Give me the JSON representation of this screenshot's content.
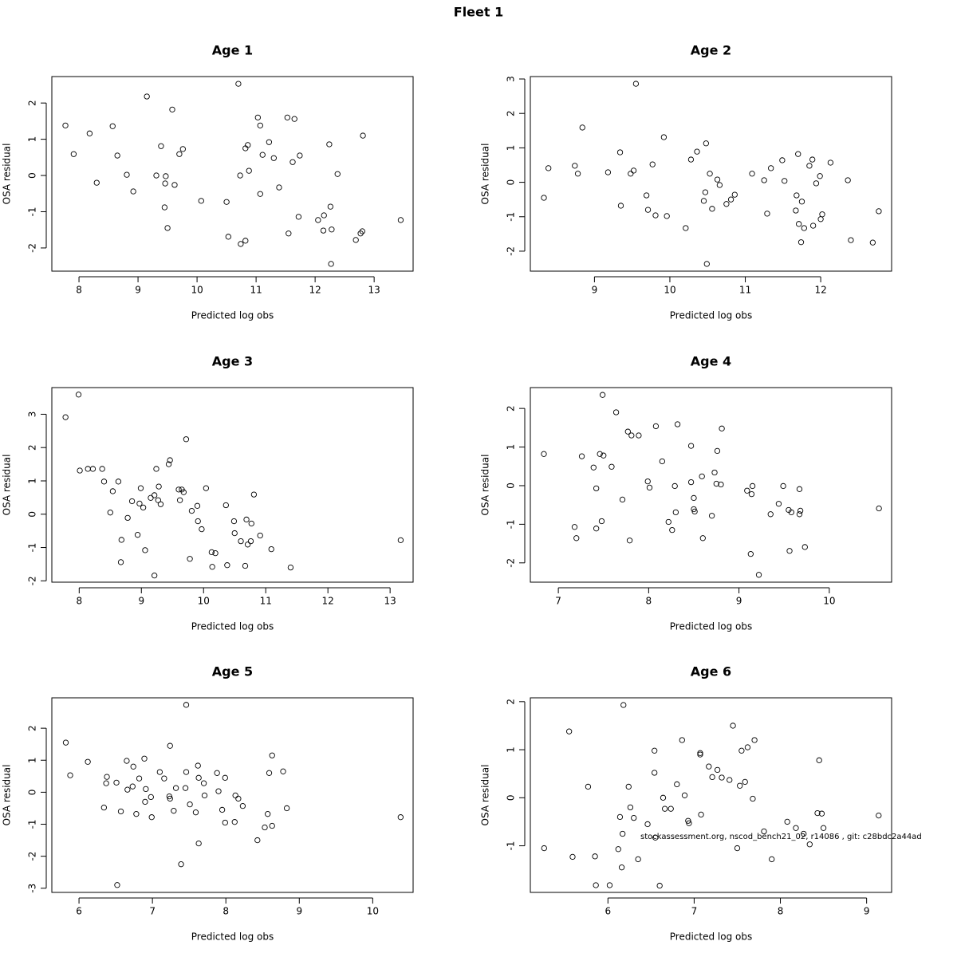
{
  "title": "Fleet 1",
  "annotation": "stockassessment.org, nscod_bench21_02, r14086 , git: c28bdc2a44ad",
  "chart_data": [
    {
      "type": "scatter",
      "title": "Age 1",
      "xlabel": "Predicted log obs",
      "ylabel": "OSA residual",
      "x": [
        7.77,
        7.91,
        8.18,
        8.3,
        8.57,
        8.65,
        8.81,
        8.92,
        9.15,
        9.31,
        9.39,
        9.47,
        9.46,
        9.45,
        9.5,
        9.58,
        9.62,
        9.7,
        9.76,
        10.07,
        10.5,
        10.53,
        10.7,
        10.73,
        10.74,
        10.82,
        10.82,
        10.86,
        10.88,
        11.03,
        11.07,
        11.07,
        11.11,
        11.22,
        11.3,
        11.39,
        11.53,
        11.55,
        11.62,
        11.65,
        11.72,
        11.74,
        12.05,
        12.14,
        12.15,
        12.24,
        12.26,
        12.28,
        12.27,
        12.38,
        12.69,
        12.77,
        12.8,
        12.81,
        13.45
      ],
      "values": [
        1.38,
        0.59,
        1.16,
        -0.2,
        1.36,
        0.55,
        0.02,
        -0.44,
        2.18,
        0.0,
        0.81,
        -0.02,
        -0.22,
        -0.88,
        -1.45,
        1.82,
        -0.26,
        0.59,
        0.73,
        -0.7,
        -0.73,
        -1.69,
        2.53,
        0.0,
        -1.89,
        -1.8,
        0.75,
        0.84,
        0.13,
        1.6,
        -0.51,
        1.38,
        0.57,
        0.92,
        0.48,
        -0.33,
        1.6,
        -1.6,
        0.37,
        1.56,
        -1.14,
        0.55,
        -1.23,
        -1.52,
        -1.1,
        0.86,
        -0.86,
        -1.49,
        -2.44,
        0.04,
        -1.78,
        -1.6,
        -1.54,
        1.1,
        -1.23
      ],
      "xlim": [
        7.54,
        13.66
      ],
      "ylim": [
        -2.64,
        2.73
      ],
      "xticks": [
        8,
        9,
        10,
        11,
        12,
        13
      ],
      "yticks": [
        -2,
        -1,
        0,
        1,
        2
      ]
    },
    {
      "type": "scatter",
      "title": "Age 2",
      "xlabel": "Predicted log obs",
      "ylabel": "OSA residual",
      "x": [
        8.33,
        8.39,
        8.74,
        8.78,
        8.84,
        9.18,
        9.34,
        9.35,
        9.48,
        9.52,
        9.55,
        9.69,
        9.71,
        9.77,
        9.81,
        9.92,
        9.96,
        10.21,
        10.28,
        10.36,
        10.45,
        10.47,
        10.48,
        10.49,
        10.53,
        10.56,
        10.63,
        10.66,
        10.75,
        10.81,
        10.86,
        11.09,
        11.25,
        11.29,
        11.34,
        11.49,
        11.52,
        11.67,
        11.68,
        11.7,
        11.71,
        11.75,
        11.74,
        11.78,
        11.85,
        11.89,
        11.9,
        11.94,
        11.99,
        12.0,
        12.02,
        12.13,
        12.36,
        12.4,
        12.69,
        12.77
      ],
      "values": [
        -0.45,
        0.41,
        0.48,
        0.25,
        1.59,
        0.29,
        0.87,
        -0.68,
        0.25,
        0.34,
        2.86,
        -0.38,
        -0.8,
        0.52,
        -0.96,
        1.31,
        -0.98,
        -1.33,
        0.66,
        0.89,
        -0.54,
        -0.29,
        1.13,
        -2.37,
        0.25,
        -0.77,
        0.08,
        -0.08,
        -0.63,
        -0.5,
        -0.36,
        0.25,
        0.06,
        -0.91,
        0.41,
        0.64,
        0.04,
        -0.82,
        -0.38,
        0.82,
        -1.21,
        -0.56,
        -1.74,
        -1.33,
        0.48,
        0.66,
        -1.26,
        -0.03,
        0.18,
        -1.07,
        -0.93,
        0.57,
        0.06,
        -1.68,
        -1.75,
        -0.84
      ],
      "xlim": [
        8.15,
        12.94
      ],
      "ylim": [
        -2.58,
        3.07
      ],
      "xticks": [
        9,
        10,
        11,
        12
      ],
      "yticks": [
        -2,
        -1,
        0,
        1,
        2,
        3
      ]
    },
    {
      "type": "scatter",
      "title": "Age 3",
      "xlabel": "Predicted log obs",
      "ylabel": "OSA residual",
      "x": [
        7.78,
        7.99,
        8.01,
        8.14,
        8.22,
        8.37,
        8.4,
        8.5,
        8.54,
        8.63,
        8.68,
        8.67,
        8.78,
        8.85,
        8.94,
        8.99,
        8.97,
        9.03,
        9.06,
        9.15,
        9.21,
        9.21,
        9.24,
        9.28,
        9.27,
        9.31,
        9.44,
        9.46,
        9.6,
        9.62,
        9.65,
        9.68,
        9.72,
        9.78,
        9.81,
        9.9,
        9.91,
        9.97,
        10.04,
        10.13,
        10.14,
        10.19,
        10.36,
        10.38,
        10.49,
        10.5,
        10.6,
        10.67,
        10.69,
        10.71,
        10.76,
        10.77,
        10.81,
        10.91,
        11.09,
        11.4,
        13.17
      ],
      "values": [
        2.91,
        3.59,
        1.31,
        1.36,
        1.36,
        1.36,
        0.98,
        0.05,
        0.69,
        0.98,
        -0.77,
        -1.44,
        -0.11,
        0.39,
        -0.62,
        0.78,
        0.32,
        0.2,
        -1.08,
        0.49,
        0.57,
        -1.84,
        1.36,
        0.83,
        0.42,
        0.3,
        1.5,
        1.62,
        0.74,
        0.42,
        0.74,
        0.66,
        2.25,
        -1.34,
        0.1,
        0.25,
        -0.21,
        -0.45,
        0.78,
        -1.14,
        -1.58,
        -1.17,
        0.27,
        -1.53,
        -0.21,
        -0.57,
        -0.81,
        -1.55,
        -0.16,
        -0.91,
        -0.81,
        -0.28,
        0.59,
        -0.64,
        -1.05,
        -1.6,
        -0.78
      ],
      "xlim": [
        7.56,
        13.37
      ],
      "ylim": [
        -2.04,
        3.8
      ],
      "xticks": [
        8,
        9,
        10,
        11,
        12,
        13
      ],
      "yticks": [
        -2,
        -1,
        0,
        1,
        2,
        3
      ]
    },
    {
      "type": "scatter",
      "title": "Age 4",
      "xlabel": "Predicted log obs",
      "ylabel": "OSA residual",
      "x": [
        6.84,
        7.18,
        7.2,
        7.26,
        7.39,
        7.42,
        7.42,
        7.46,
        7.48,
        7.49,
        7.5,
        7.59,
        7.64,
        7.71,
        7.77,
        7.79,
        7.81,
        7.89,
        7.99,
        8.01,
        8.08,
        8.15,
        8.22,
        8.26,
        8.29,
        8.3,
        8.32,
        8.47,
        8.47,
        8.5,
        8.51,
        8.5,
        8.59,
        8.6,
        8.7,
        8.73,
        8.75,
        8.76,
        8.8,
        8.81,
        9.09,
        9.13,
        9.14,
        9.15,
        9.22,
        9.35,
        9.44,
        9.49,
        9.55,
        9.56,
        9.58,
        9.67,
        9.67,
        9.68,
        9.73,
        10.55
      ],
      "values": [
        0.82,
        -1.07,
        -1.36,
        0.76,
        0.47,
        -0.07,
        -1.11,
        0.82,
        -0.92,
        2.35,
        0.78,
        0.49,
        1.9,
        -0.36,
        1.4,
        -1.42,
        1.3,
        1.3,
        0.11,
        -0.05,
        1.54,
        0.63,
        -0.94,
        -1.15,
        -0.01,
        -0.69,
        1.59,
        1.03,
        0.09,
        -0.61,
        -0.67,
        -0.32,
        0.24,
        -1.36,
        -0.78,
        0.34,
        0.05,
        0.9,
        0.03,
        1.48,
        -0.13,
        -1.77,
        -0.22,
        -0.01,
        -2.31,
        -0.74,
        -0.47,
        -0.01,
        -0.63,
        -1.69,
        -0.69,
        -0.09,
        -0.74,
        -0.65,
        -1.59,
        -0.59
      ],
      "xlim": [
        6.69,
        10.69
      ],
      "ylim": [
        -2.5,
        2.54
      ],
      "xticks": [
        7,
        8,
        9,
        10
      ],
      "yticks": [
        -2,
        -1,
        0,
        1,
        2
      ]
    },
    {
      "type": "scatter",
      "title": "Age 5",
      "xlabel": "Predicted log obs",
      "ylabel": "OSA residual",
      "x": [
        5.82,
        5.88,
        6.12,
        6.34,
        6.37,
        6.38,
        6.51,
        6.52,
        6.57,
        6.65,
        6.66,
        6.73,
        6.74,
        6.78,
        6.82,
        6.89,
        6.9,
        6.91,
        6.98,
        6.99,
        7.1,
        7.16,
        7.24,
        7.24,
        7.23,
        7.29,
        7.32,
        7.39,
        7.45,
        7.46,
        7.46,
        7.51,
        7.59,
        7.62,
        7.63,
        7.63,
        7.7,
        7.71,
        7.88,
        7.9,
        7.95,
        7.99,
        7.99,
        8.12,
        8.13,
        8.17,
        8.23,
        8.43,
        8.53,
        8.57,
        8.59,
        8.63,
        8.63,
        8.78,
        8.83,
        10.38
      ],
      "values": [
        1.55,
        0.53,
        0.95,
        -0.48,
        0.28,
        0.48,
        0.3,
        -2.9,
        -0.6,
        0.98,
        0.08,
        0.18,
        0.8,
        -0.68,
        0.43,
        1.05,
        -0.3,
        0.1,
        -0.15,
        -0.78,
        0.63,
        0.43,
        1.45,
        -0.2,
        -0.13,
        -0.58,
        0.13,
        -2.25,
        0.13,
        0.63,
        2.73,
        -0.38,
        -0.63,
        0.83,
        0.45,
        -1.6,
        0.28,
        -0.1,
        0.6,
        0.03,
        -0.55,
        0.45,
        -0.95,
        -0.93,
        -0.1,
        -0.2,
        -0.43,
        -1.5,
        -1.1,
        -0.68,
        0.6,
        -1.05,
        1.15,
        0.65,
        -0.5,
        -0.78
      ],
      "xlim": [
        5.63,
        10.55
      ],
      "ylim": [
        -3.13,
        2.95
      ],
      "xticks": [
        6,
        7,
        8,
        9,
        10
      ],
      "yticks": [
        -3,
        -2,
        -1,
        0,
        1,
        2
      ]
    },
    {
      "type": "scatter",
      "title": "Age 6",
      "xlabel": "Predicted log obs",
      "ylabel": "OSA residual",
      "x": [
        5.26,
        5.55,
        5.59,
        5.77,
        5.85,
        5.86,
        6.02,
        6.12,
        6.14,
        6.16,
        6.17,
        6.18,
        6.24,
        6.26,
        6.3,
        6.35,
        6.46,
        6.54,
        6.54,
        6.55,
        6.6,
        6.64,
        6.66,
        6.73,
        6.8,
        6.86,
        6.89,
        6.93,
        6.94,
        7.07,
        7.07,
        7.08,
        7.17,
        7.21,
        7.27,
        7.32,
        7.41,
        7.45,
        7.5,
        7.53,
        7.55,
        7.59,
        7.62,
        7.68,
        7.7,
        7.81,
        7.9,
        8.08,
        8.18,
        8.27,
        8.34,
        8.43,
        8.48,
        8.45,
        8.5,
        9.14
      ],
      "values": [
        -1.05,
        1.38,
        -1.23,
        0.23,
        -1.22,
        -1.82,
        -1.82,
        -1.07,
        -0.4,
        -1.45,
        -0.75,
        1.93,
        0.23,
        -0.2,
        -0.42,
        -1.28,
        -0.55,
        0.52,
        0.98,
        -0.83,
        -1.83,
        0.0,
        -0.23,
        -0.23,
        0.28,
        1.2,
        0.05,
        -0.48,
        -0.53,
        0.93,
        0.9,
        -0.35,
        0.65,
        0.43,
        0.58,
        0.42,
        0.37,
        1.5,
        -1.05,
        0.25,
        0.98,
        0.33,
        1.05,
        -0.02,
        1.2,
        -0.7,
        -1.28,
        -0.5,
        -0.63,
        -0.75,
        -0.97,
        -0.32,
        -0.33,
        0.78,
        -0.63,
        -0.37
      ],
      "xlim": [
        5.1,
        9.29
      ],
      "ylim": [
        -1.97,
        2.08
      ],
      "xticks": [
        6,
        7,
        8,
        9
      ],
      "yticks": [
        -1,
        0,
        1,
        2
      ]
    }
  ]
}
